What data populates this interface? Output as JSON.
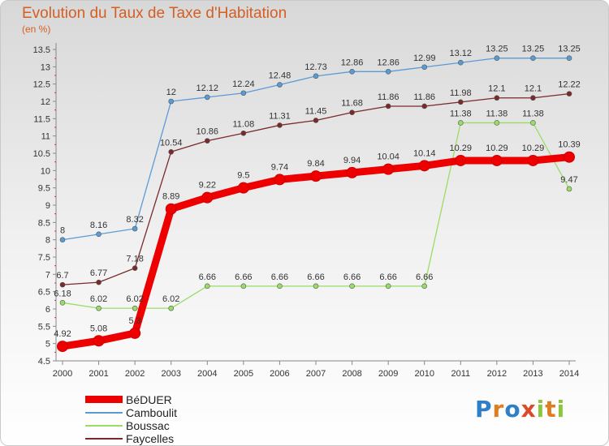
{
  "title": "Evolution du Taux de Taxe d'Habitation",
  "subtitle": "(en %)",
  "logo": {
    "text": "Proxiti",
    "letters": [
      {
        "ch": "P",
        "color": "#2e7fc6"
      },
      {
        "ch": "r",
        "color": "#e07c22"
      },
      {
        "ch": "o",
        "color": "#2e7fc6"
      },
      {
        "ch": "x",
        "color": "#d94b2b"
      },
      {
        "ch": "i",
        "color": "#8cc63f"
      },
      {
        "ch": "t",
        "color": "#e07c22"
      },
      {
        "ch": "i",
        "color": "#8cc63f"
      }
    ]
  },
  "chart_data": {
    "type": "line",
    "x": [
      "2000",
      "2001",
      "2002",
      "2003",
      "2004",
      "2005",
      "2006",
      "2007",
      "2008",
      "2009",
      "2010",
      "2011",
      "2012",
      "2013",
      "2014"
    ],
    "ylim": [
      4.5,
      13.5
    ],
    "yticks": [
      "4.5",
      "5",
      "5.5",
      "6",
      "6.5",
      "7",
      "7.5",
      "8",
      "8.5",
      "9",
      "9.5",
      "10",
      "10.5",
      "11",
      "11.5",
      "12",
      "12.5",
      "13",
      "13.5"
    ],
    "grid": false,
    "legend_position": "bottom-left",
    "series": [
      {
        "name": "BéDUER",
        "color": "#ee0000",
        "emphasis": true,
        "values": [
          4.92,
          5.08,
          5.3,
          8.89,
          9.22,
          9.5,
          9.74,
          9.84,
          9.94,
          10.04,
          10.14,
          10.29,
          10.29,
          10.29,
          10.39
        ],
        "labels": [
          "4.92",
          "5.08",
          "5.3",
          "8.89",
          "9.22",
          "9.5",
          "9.74",
          "9.84",
          "9.94",
          "10.04",
          "10.14",
          "10.29",
          "10.29",
          "10.29",
          "10.39"
        ]
      },
      {
        "name": "Camboulit",
        "color": "#5b9bd5",
        "values": [
          8,
          8.16,
          8.32,
          12,
          12.12,
          12.24,
          12.48,
          12.73,
          12.86,
          12.86,
          12.99,
          13.12,
          13.25,
          13.25,
          13.25
        ],
        "labels": [
          "8",
          "8.16",
          "8.32",
          "12",
          "12.12",
          "12.24",
          "12.48",
          "12.73",
          "12.86",
          "12.86",
          "12.99",
          "13.12",
          "13.25",
          "13.25",
          "13.25"
        ]
      },
      {
        "name": "Boussac",
        "color": "#99dd66",
        "values": [
          6.18,
          6.02,
          6.02,
          6.02,
          6.66,
          6.66,
          6.66,
          6.66,
          6.66,
          6.66,
          6.66,
          11.38,
          11.38,
          11.38,
          9.47
        ],
        "labels": [
          "6.18",
          "6.02",
          "6.02",
          "6.02",
          "6.66",
          "6.66",
          "6.66",
          "6.66",
          "6.66",
          "6.66",
          "6.66",
          "11.38",
          "11.38",
          "11.38",
          "9.47"
        ]
      },
      {
        "name": "Faycelles",
        "color": "#7a2a2a",
        "values": [
          6.7,
          6.77,
          7.18,
          10.54,
          10.86,
          11.08,
          11.31,
          11.45,
          11.68,
          11.86,
          11.86,
          11.98,
          12.1,
          12.1,
          12.22
        ],
        "labels": [
          "6.7",
          "6.77",
          "7.18",
          "10.54",
          "10.86",
          "11.08",
          "11.31",
          "11.45",
          "11.68",
          "11.86",
          "11.86",
          "11.98",
          "12.1",
          "12.1",
          "12.22"
        ]
      }
    ]
  }
}
